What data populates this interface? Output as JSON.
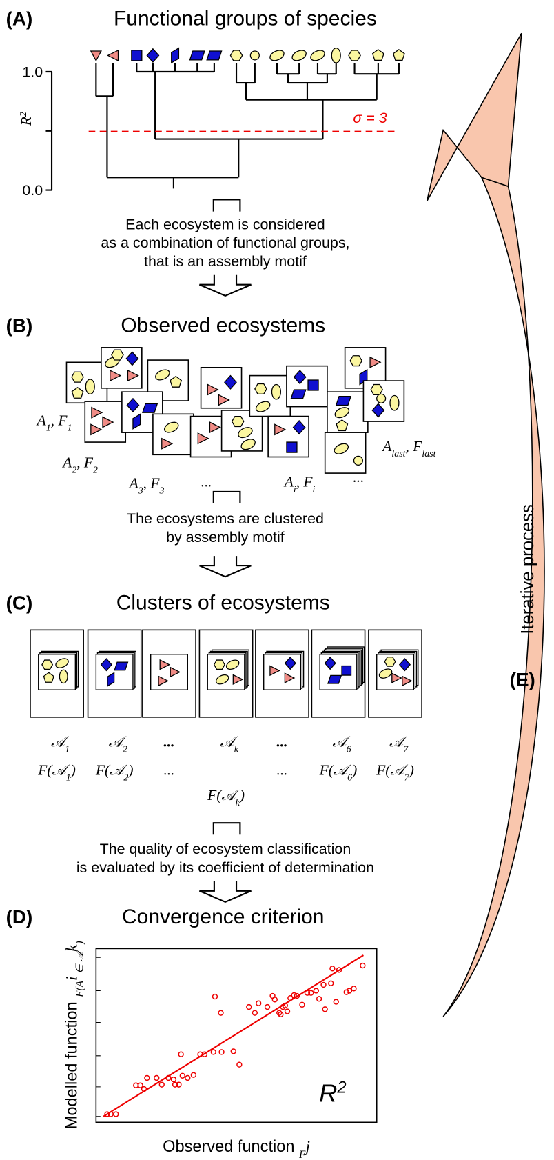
{
  "panels": [
    {
      "label": "(A)",
      "title": "Functional groups of species"
    },
    {
      "label": "(B)",
      "title": "Observed ecosystems"
    },
    {
      "label": "(C)",
      "title": "Clusters of ecosystems"
    },
    {
      "label": "(D)",
      "title": "Convergence criterion"
    }
  ],
  "dendrogram": {
    "yticks": [
      "1.0",
      "0.0"
    ],
    "y_label": [
      "R",
      "2"
    ],
    "threshold": "σ = 3"
  },
  "captions": [
    [
      "Each ecosystem is considered",
      "as a combination of functional groups,",
      "that is an assembly motif"
    ],
    [
      "The ecosystems are clustered",
      "by assembly motif"
    ],
    [
      "The quality of ecosystem classification",
      "is evaluated by its coefficient of determination"
    ]
  ],
  "ecosystem_labels": [
    [
      "A",
      "1",
      ", F",
      "1"
    ],
    [
      "A",
      "2",
      ", F",
      "2"
    ],
    [
      "A",
      "3",
      ", F",
      "3"
    ],
    [
      "..."
    ],
    [
      "A",
      "i",
      ", F",
      "i"
    ],
    [
      "..."
    ],
    [
      "A",
      "last",
      ", F",
      "last"
    ]
  ],
  "cluster_motifs": [
    [
      "𝒜",
      "1"
    ],
    [
      "𝒜",
      "2"
    ],
    [
      "..."
    ],
    [
      "𝒜",
      "k"
    ],
    [
      "..."
    ],
    [
      "𝒜",
      "6"
    ],
    [
      "𝒜",
      "7"
    ]
  ],
  "cluster_functions": [
    [
      "F(𝒜",
      "1",
      ")"
    ],
    [
      "F(𝒜",
      "2",
      ")"
    ],
    [
      "..."
    ],
    [
      "F(𝒜",
      "k",
      ")"
    ],
    [
      "..."
    ],
    [
      "F(𝒜",
      "6",
      ")"
    ],
    [
      "F(𝒜",
      "7",
      ")"
    ]
  ],
  "convergence": {
    "y_label": [
      "Modelled function ",
      "F(A",
      "i",
      " ∈ 𝒜",
      "k",
      ")"
    ],
    "x_label": [
      "Observed function ",
      "F",
      "j"
    ],
    "statistic": [
      "R",
      "2"
    ]
  },
  "iteration": {
    "label": "(E)",
    "text": "Iterative process"
  }
}
